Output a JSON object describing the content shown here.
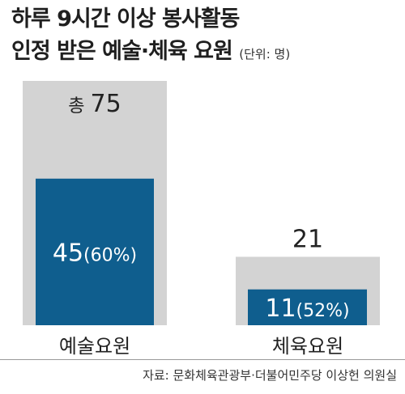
{
  "title": {
    "line1": "하루 9시간 이상 봉사활동",
    "line2": "인정 받은 예술·체육 요원",
    "unit": "(단위: 명)"
  },
  "source": "자료: 문화체육관광부·더불어민주당 이상헌 의원실",
  "colors": {
    "total": "#d3d3d3",
    "recognized": "#0f5e8e"
  },
  "chart_data": {
    "type": "bar",
    "categories": [
      "예술요원",
      "체육요원"
    ],
    "series": [
      {
        "values": [
          75,
          21
        ]
      },
      {
        "values": [
          45,
          11
        ]
      }
    ],
    "total_labels": [
      "총 75",
      "21"
    ],
    "value_labels": [
      {
        "value": "45",
        "pct": "(60%)"
      },
      {
        "value": "11",
        "pct": "(52%)"
      }
    ],
    "ylim": [
      0,
      75
    ],
    "grid": false,
    "legend": "none"
  }
}
